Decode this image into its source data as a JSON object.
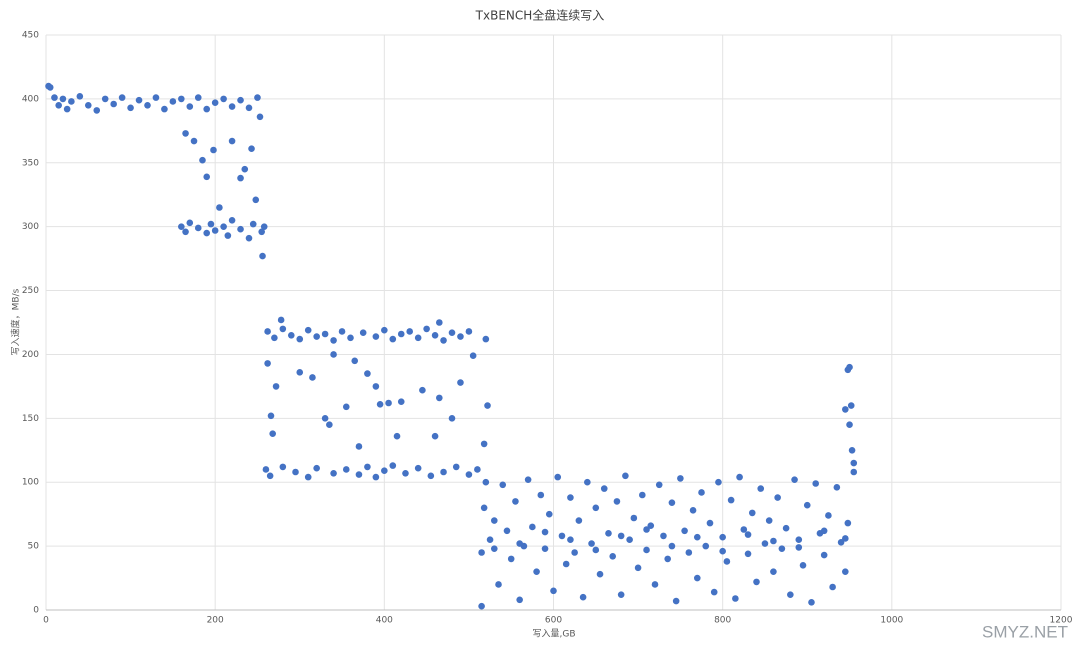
{
  "chart_data": {
    "type": "scatter",
    "title": "TxBENCH全盘连续写入",
    "x_label": "写入量,GB",
    "y_label": "写入速度，MB/s",
    "watermark": "SMYZ.NET",
    "color": "#4472c4",
    "grid": true,
    "xlim": [
      0,
      1200
    ],
    "xticks": [
      0,
      200,
      400,
      600,
      800,
      1000,
      1200
    ],
    "ylim": [
      0,
      450
    ],
    "yticks": [
      0,
      50,
      100,
      150,
      200,
      250,
      300,
      350,
      400,
      450
    ],
    "x": [
      3,
      5,
      10,
      15,
      20,
      25,
      30,
      40,
      50,
      60,
      70,
      80,
      90,
      100,
      110,
      120,
      130,
      140,
      150,
      160,
      170,
      180,
      190,
      200,
      210,
      220,
      230,
      240,
      250,
      253,
      165,
      175,
      185,
      190,
      198,
      205,
      220,
      230,
      235,
      243,
      248,
      256,
      160,
      165,
      170,
      180,
      190,
      195,
      200,
      210,
      215,
      220,
      230,
      240,
      245,
      255,
      258,
      262,
      270,
      280,
      290,
      300,
      310,
      320,
      330,
      340,
      350,
      360,
      375,
      390,
      400,
      410,
      420,
      430,
      440,
      450,
      460,
      470,
      480,
      490,
      500,
      278,
      465,
      260,
      265,
      280,
      295,
      310,
      320,
      340,
      355,
      370,
      380,
      390,
      400,
      410,
      425,
      440,
      455,
      470,
      485,
      500,
      510,
      262,
      266,
      268,
      272,
      300,
      315,
      330,
      335,
      340,
      355,
      365,
      370,
      380,
      390,
      395,
      405,
      415,
      420,
      445,
      460,
      465,
      480,
      490,
      505,
      520,
      522,
      518,
      515,
      515,
      518,
      520,
      525,
      530,
      535,
      540,
      545,
      550,
      555,
      560,
      565,
      570,
      575,
      580,
      585,
      590,
      595,
      600,
      605,
      610,
      615,
      620,
      625,
      630,
      635,
      640,
      645,
      650,
      655,
      660,
      665,
      670,
      675,
      680,
      685,
      690,
      695,
      700,
      705,
      710,
      715,
      720,
      725,
      730,
      735,
      740,
      745,
      750,
      755,
      760,
      765,
      770,
      775,
      780,
      785,
      790,
      795,
      800,
      805,
      810,
      815,
      820,
      825,
      830,
      835,
      840,
      845,
      850,
      855,
      860,
      865,
      870,
      875,
      880,
      885,
      890,
      895,
      900,
      905,
      910,
      915,
      920,
      925,
      930,
      935,
      940,
      945,
      948,
      530,
      560,
      590,
      620,
      650,
      680,
      710,
      740,
      770,
      800,
      830,
      860,
      890,
      920,
      945,
      945,
      948,
      950,
      952,
      950,
      953,
      955,
      955
    ],
    "values": [
      410,
      409,
      401,
      395,
      400,
      392,
      398,
      402,
      395,
      391,
      400,
      396,
      401,
      393,
      399,
      395,
      401,
      392,
      398,
      400,
      394,
      401,
      392,
      397,
      400,
      394,
      399,
      393,
      401,
      386,
      373,
      367,
      352,
      339,
      360,
      315,
      367,
      338,
      345,
      361,
      321,
      277,
      300,
      296,
      303,
      299,
      295,
      302,
      297,
      300,
      293,
      305,
      298,
      291,
      302,
      296,
      300,
      218,
      213,
      220,
      215,
      212,
      219,
      214,
      216,
      211,
      218,
      213,
      217,
      214,
      219,
      212,
      216,
      218,
      213,
      220,
      215,
      211,
      217,
      214,
      218,
      227,
      225,
      110,
      105,
      112,
      108,
      104,
      111,
      107,
      110,
      106,
      112,
      104,
      109,
      113,
      107,
      111,
      105,
      108,
      112,
      106,
      110,
      193,
      152,
      138,
      175,
      186,
      182,
      150,
      145,
      200,
      159,
      195,
      128,
      185,
      175,
      161,
      162,
      136,
      163,
      172,
      136,
      166,
      150,
      178,
      199,
      212,
      160,
      130,
      3,
      45,
      80,
      100,
      55,
      70,
      20,
      98,
      62,
      40,
      85,
      8,
      50,
      102,
      65,
      30,
      90,
      48,
      75,
      15,
      104,
      58,
      36,
      88,
      45,
      70,
      10,
      100,
      52,
      80,
      28,
      95,
      60,
      42,
      85,
      12,
      105,
      55,
      72,
      33,
      90,
      47,
      66,
      20,
      98,
      58,
      40,
      84,
      7,
      103,
      62,
      45,
      78,
      25,
      92,
      50,
      68,
      14,
      100,
      57,
      38,
      86,
      9,
      104,
      63,
      44,
      76,
      22,
      95,
      52,
      70,
      30,
      88,
      48,
      64,
      12,
      102,
      55,
      35,
      82,
      6,
      99,
      60,
      43,
      74,
      18,
      96,
      53,
      30,
      68,
      48,
      52,
      61,
      55,
      47,
      58,
      63,
      50,
      57,
      46,
      59,
      54,
      49,
      62,
      56,
      157,
      188,
      190,
      160,
      145,
      125,
      115,
      108
    ]
  }
}
